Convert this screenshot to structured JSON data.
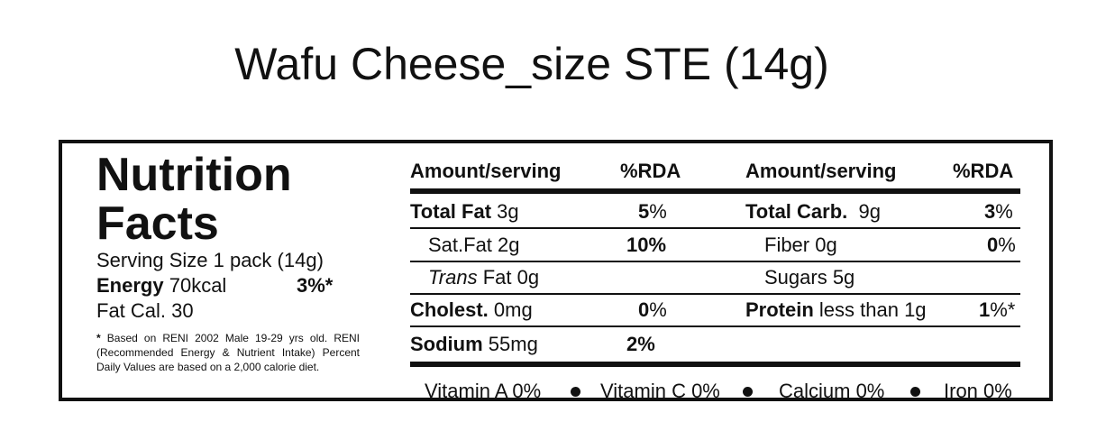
{
  "title": "Wafu Cheese_size STE (14g)",
  "label": {
    "heading_line1": "Nutrition",
    "heading_line2": "Facts",
    "serving_size": "Serving Size 1 pack (14g)",
    "energy_label": "Energy",
    "energy_value": "70kcal",
    "energy_pct": "3%*",
    "fat_cal": "Fat Cal. 30",
    "footnote_star": "*",
    "footnote_text": "Based on RENI 2002 Male 19-29 yrs old. RENI (Recommended Energy & Nutrient Intake) Percent Daily Values are based on a 2,000 calorie diet."
  },
  "table": {
    "header": {
      "amount1": "Amount/serving",
      "rda1": "%RDA",
      "amount2": "Amount/serving",
      "rda2": "%RDA"
    },
    "left_rows": [
      {
        "bold": "Total Fat",
        "value": " 3g",
        "pct_bold": "5",
        "pct_rest": "%"
      },
      {
        "bold": "",
        "value": "Sat.Fat 2g",
        "pct_bold": "10%",
        "pct_rest": ""
      },
      {
        "italic": "Trans",
        "value": " Fat 0g",
        "pct_bold": "",
        "pct_rest": ""
      },
      {
        "bold": "Cholest.",
        "value": " 0mg",
        "pct_bold": "0",
        "pct_rest": "%"
      },
      {
        "bold": "Sodium",
        "value": " 55mg",
        "pct_bold": "2%",
        "pct_rest": ""
      }
    ],
    "right_rows": [
      {
        "bold": "Total Carb.",
        "value": "  9g",
        "pct_bold": "3",
        "pct_rest": "%"
      },
      {
        "bold": "",
        "value": "Fiber 0g",
        "pct_bold": "0",
        "pct_rest": "%"
      },
      {
        "bold": "",
        "value": "Sugars 5g",
        "pct_bold": "",
        "pct_rest": ""
      },
      {
        "bold": "Protein",
        "value": " less than 1g",
        "pct_bold": "1",
        "pct_rest": "%*"
      }
    ],
    "vitamins": [
      "Vitamin A 0%",
      "Vitamin C 0%",
      "Calcium 0%",
      "Iron 0%"
    ]
  }
}
